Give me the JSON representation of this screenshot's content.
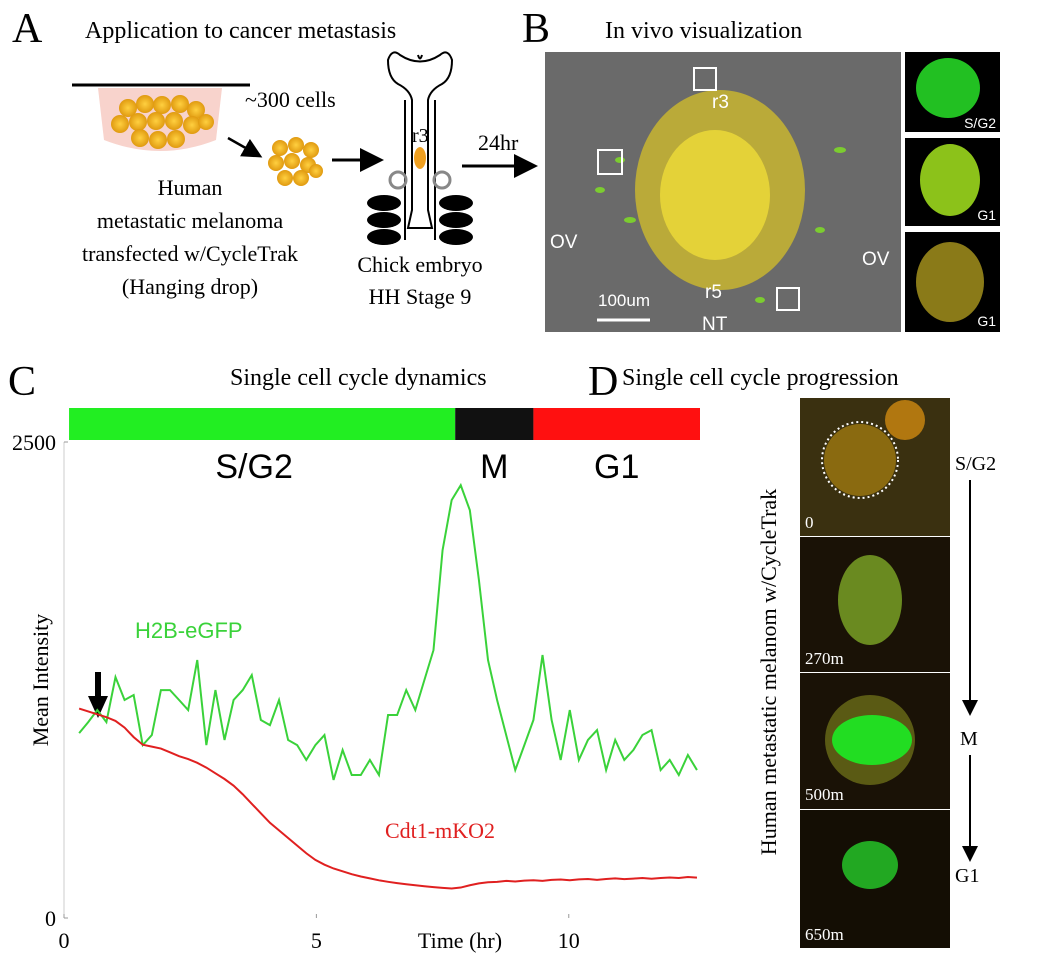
{
  "panel_a": {
    "letter": "A",
    "title": "Application to cancer metastasis",
    "cells_label": "~300 cells",
    "cell_description": [
      "Human",
      "metastatic melanoma",
      "transfected w/CycleTrak",
      "(Hanging drop)"
    ],
    "r3_label": "r3",
    "time_label": "24hr",
    "embryo_label": [
      "Chick embryo",
      "HH Stage 9"
    ]
  },
  "panel_b": {
    "letter": "B",
    "title": "In vivo visualization",
    "labels": {
      "r3": "r3",
      "ov_left": "OV",
      "ov_right": "OV",
      "r5": "r5",
      "nt": "NT"
    },
    "scale_bar": "100um",
    "insets": [
      "S/G2",
      "G1",
      "G1"
    ]
  },
  "chart_data": {
    "type": "line",
    "letter": "C",
    "title": "Single cell cycle dynamics",
    "xlabel": "Time (hr)",
    "ylabel": "Mean Intensity",
    "x": [
      0.3,
      0.48,
      0.66,
      0.84,
      1.02,
      1.2,
      1.38,
      1.56,
      1.74,
      1.92,
      2.1,
      2.28,
      2.46,
      2.64,
      2.82,
      3,
      3.18,
      3.36,
      3.54,
      3.72,
      3.9,
      4.08,
      4.26,
      4.44,
      4.62,
      4.8,
      4.98,
      5.16,
      5.34,
      5.52,
      5.7,
      5.88,
      6.06,
      6.24,
      6.42,
      6.6,
      6.78,
      6.96,
      7.14,
      7.32,
      7.5,
      7.68,
      7.86,
      8.04,
      8.22,
      8.4,
      8.58,
      8.76,
      8.94,
      9.12,
      9.3,
      9.48,
      9.66,
      9.84,
      10.02,
      10.2,
      10.38,
      10.56,
      10.74,
      10.92,
      11.1,
      11.28,
      11.46,
      11.64,
      11.82,
      12,
      12.18,
      12.36,
      12.54
    ],
    "series": [
      {
        "name": "H2B-eGFP",
        "color": "#3ad23a",
        "values": [
          971,
          1029,
          1092,
          1029,
          1265,
          1145,
          1171,
          908,
          961,
          1197,
          1197,
          1145,
          1092,
          1355,
          908,
          1197,
          935,
          1145,
          1197,
          1276,
          1040,
          1013,
          1145,
          935,
          908,
          830,
          908,
          961,
          725,
          882,
          751,
          751,
          830,
          751,
          1066,
          1066,
          1197,
          1092,
          1250,
          1407,
          1932,
          2195,
          2273,
          2142,
          1775,
          1355,
          1145,
          961,
          777,
          908,
          1040,
          1381,
          1040,
          830,
          1092,
          830,
          935,
          987,
          777,
          935,
          830,
          882,
          961,
          987,
          777,
          830,
          751,
          856,
          777
        ]
      },
      {
        "name": "Cdt1-mKO2",
        "color": "#e02020",
        "values": [
          1100,
          1085,
          1070,
          1055,
          1035,
          1000,
          950,
          910,
          900,
          890,
          870,
          850,
          835,
          815,
          790,
          760,
          730,
          695,
          650,
          600,
          550,
          500,
          460,
          420,
          380,
          340,
          305,
          280,
          260,
          245,
          230,
          218,
          208,
          198,
          190,
          183,
          177,
          172,
          167,
          162,
          158,
          155,
          160,
          172,
          182,
          188,
          190,
          195,
          192,
          196,
          198,
          195,
          200,
          202,
          198,
          203,
          205,
          200,
          205,
          208,
          204,
          207,
          210,
          206,
          210,
          213,
          210,
          215,
          212
        ]
      }
    ],
    "phases": [
      {
        "label": "S/G2",
        "color": "#22ee22",
        "start": 0.1,
        "end": 7.75
      },
      {
        "label": "M",
        "color": "#111111",
        "start": 7.75,
        "end": 9.3
      },
      {
        "label": "G1",
        "color": "#ff1010",
        "start": 9.3,
        "end": 12.6
      }
    ],
    "xlim": [
      0,
      12.6
    ],
    "ylim": [
      0,
      2500
    ],
    "xticks": [
      0,
      5,
      10
    ],
    "yticks": [
      0,
      2500
    ]
  },
  "panel_d": {
    "letter": "D",
    "title": "Single cell cycle progression",
    "ylabel": "Human metastatic melanom w/CycleTrak",
    "frames": [
      "0",
      "270m",
      "500m",
      "650m"
    ],
    "phases": [
      "S/G2",
      "M",
      "G1"
    ]
  }
}
